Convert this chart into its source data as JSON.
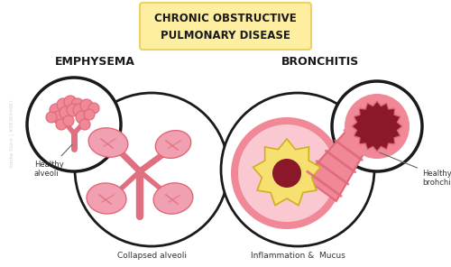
{
  "title_line1": "CHRONIC OBSTRUCTIVE",
  "title_line2": "PULMONARY DISEASE",
  "title_bg": "#FDEEA0",
  "title_border": "#F0D060",
  "section1_label": "EMPHYSEMA",
  "section2_label": "BRONCHITIS",
  "label_healthy_alveoli": "Healthy\nalveoli",
  "label_collapsed_alveoli": "Collapsed alveoli",
  "label_inflammation": "Inflammation &  Mucus",
  "label_healthy_bronchiole": "Healthy\nbrohchiole",
  "bg_color": "#FFFFFF",
  "pink_light": "#F5B8C4",
  "pink_medium": "#F08898",
  "pink_dark": "#E06878",
  "pink_stem": "#E07080",
  "pink_blob": "#F0A0B0",
  "red_bright": "#E84060",
  "yellow": "#F5E070",
  "dark_red_center": "#8B1828",
  "circle_line": "#1A1A1A",
  "stripe_pink": "#F0A0B0"
}
